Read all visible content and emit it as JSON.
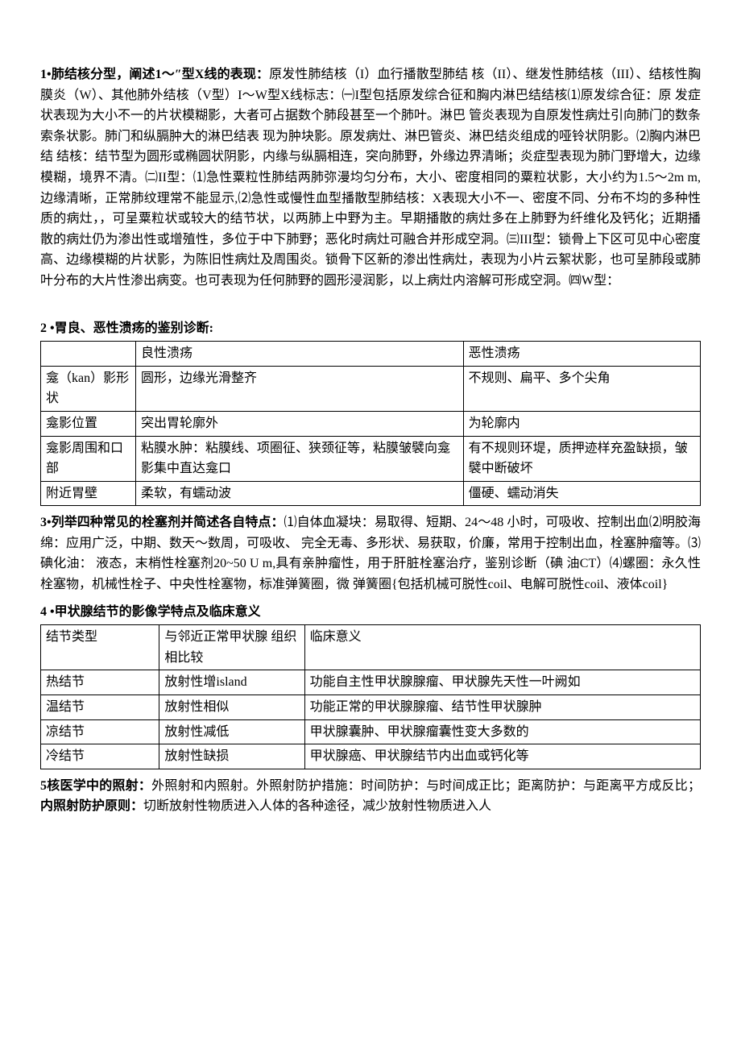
{
  "section1": {
    "title": "1•肺结核分型，阐述1～″型X线的表现：",
    "content": "原发性肺结核（I）血行播散型肺结 核（II）、继发性肺结核（III）、结核性胸膜炎（W）、其他肺外结核（V型）I〜W型X线标志：㈠I型包括原发综合征和胸内淋巴结结核⑴原发综合征：原 发症状表现为大小不一的片状模糊影，大者可占据数个肺段甚至一个肺叶。淋巴 管炎表现为自原发性病灶引向肺门的数条索条状影。肺门和纵膈肿大的淋巴结表 现为肿块影。原发病灶、淋巴管炎、淋巴结炎组成的哑铃状阴影。⑵胸内淋巴结 结核：结节型为圆形或椭圆状阴影，内缘与纵膈相连，突向肺野，外缘边界清晰；炎症型表现为肺门野增大，边缘模糊，境界不清。㈡II型：⑴急性粟粒性肺结两肺弥漫均匀分布，大小、密度相同的粟粒状影，大小约为1.5〜2m m,边缘清晰，正常肺纹理常不能显示,⑵急性或慢性血型播散型肺结核：X表现大小不一、密度不同、分布不均的多种性质的病灶，，可呈粟粒状或较大的结节状，以两肺上中野为主。早期播散的病灶多在上肺野为纤维化及钙化；近期播散的病灶仍为渗出性或增殖性，多位于中下肺野；恶化时病灶可融合并形成空洞。㈢III型：锁骨上下区可见中心密度高、边缘模糊的片状影，为陈旧性病灶及周围炎。锁骨下区新的渗出性病灶，表现为小片云絮状影，也可呈肺段或肺叶分布的大片性渗出病变。也可表现为任何肺野的圆形浸润影，以上病灶内溶解可形成空洞。㈣W型："
  },
  "section2": {
    "title": "2 •胃良、恶性溃疡的鉴别诊断:",
    "headers": [
      "",
      "良性溃疡",
      "恶性溃疡"
    ],
    "rows": [
      [
        "龛（kan）影形状",
        "圆形，边缘光滑整齐",
        "不规则、扁平、多个尖角"
      ],
      [
        "龛影位置",
        "突出胃轮廓外",
        "为轮廓内"
      ],
      [
        "龛影周围和口部",
        "粘膜水肿：粘膜线、项圈征、狭颈征等，粘膜皱襞向龛影集中直达龛口",
        "有不规则环堤，质押迹样充盈缺损，皱襞中断破坏"
      ],
      [
        "附近胃壁",
        "柔软，有蠕动波",
        "僵硬、蠕动消失"
      ]
    ]
  },
  "section3": {
    "title": "3•列举四种常见的栓塞剂并简述各自特点：",
    "content": "⑴自体血凝块：易取得、短期、24〜48 小时，可吸收、控制出血⑵明胶海绵：应用广泛，中期、数天〜数周，可吸收、 完全无毒、多形状、易获取，价廉，常用于控制出血，栓塞肿瘤等。⑶碘化油： 液态，末梢性栓塞剂20~50 U m,具有亲肿瘤性，用于肝脏栓塞治疗，鉴别诊断（碘 油CT）⑷螺圈：永久性栓塞物，机械性栓子、中央性栓塞物，标准弹簧圈，微 弹簧圈{包括机械可脱性coil、电解可脱性coil、液体coil}"
  },
  "section4": {
    "title": "4 •甲状腺结节的影像学特点及临床意义",
    "headers": [
      "结节类型",
      "与邻近正常甲状腺 组织相比较",
      "临床意义"
    ],
    "rows": [
      [
        "热结节",
        "放射性增island",
        "功能自主性甲状腺腺瘤、甲状腺先天性一叶阙如"
      ],
      [
        "温结节",
        "放射性相似",
        "功能正常的甲状腺腺瘤、结节性甲状腺肿"
      ],
      [
        "凉结节",
        "放射性减低",
        "甲状腺囊肿、甲状腺瘤囊性变大多数的"
      ],
      [
        "冷结节",
        "放射性缺损",
        "甲状腺癌、甲状腺结节内出血或钙化等"
      ]
    ]
  },
  "section5": {
    "title_part1": "5核医学中的照射：",
    "content_part1": "外照射和内照射。外照射防护措施：时间防护：与时间成正比；距离防护：与距离平方成反比； ",
    "title_part2": "内照射防护原则：",
    "content_part2": "切断放射性物质进入人体的各种途径，减少放射性物质进入人"
  }
}
